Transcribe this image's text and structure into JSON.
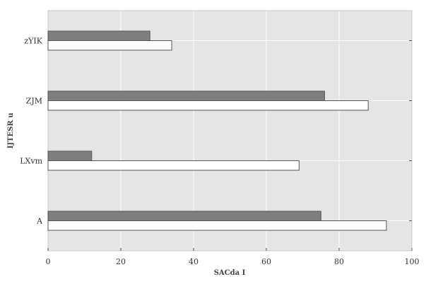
{
  "chart_data": {
    "type": "bar",
    "orientation": "horizontal",
    "categories": [
      "A",
      "LXvm",
      "ZJM",
      "zYIK"
    ],
    "series": [
      {
        "values": [
          75,
          12,
          76,
          28
        ],
        "color": "#7f7f7f"
      },
      {
        "values": [
          93,
          69,
          88,
          34
        ],
        "color": "#ffffff"
      }
    ],
    "xlabel": "SACda I",
    "ylabel": "IJTESR u",
    "xlim": [
      0,
      100
    ],
    "xticks": [
      0,
      20,
      40,
      60,
      80,
      100
    ],
    "grid": true,
    "background": "#e5e5e5",
    "grid_color": "#ffffff"
  }
}
